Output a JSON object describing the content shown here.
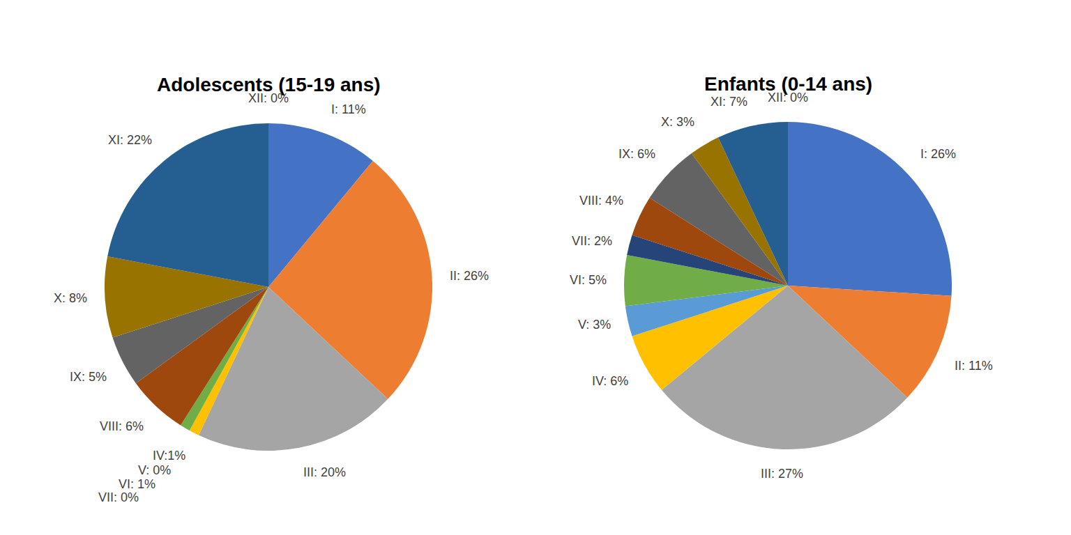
{
  "chart_data": [
    {
      "type": "pie",
      "title": "Adolescents (15-19 ans)",
      "categories": [
        "I",
        "II",
        "III",
        "IV",
        "V",
        "VI",
        "VII",
        "VIII",
        "IX",
        "X",
        "XI",
        "XII"
      ],
      "values": [
        11,
        26,
        20,
        1,
        0,
        1,
        0,
        6,
        5,
        8,
        22,
        0
      ],
      "value_labels": [
        "I: 11%",
        "II: 26%",
        "III: 20%",
        "IV:1%",
        "V: 0%",
        "VI: 1%",
        "VII: 0%",
        "VIII: 6%",
        "IX: 5%",
        "X: 8%",
        "XI: 22%",
        "XII: 0%"
      ],
      "colors": [
        "#4472c4",
        "#ed7d31",
        "#a5a5a5",
        "#ffc000",
        "#5b9bd5",
        "#70ad47",
        "#264478",
        "#9e480e",
        "#636363",
        "#997300",
        "#255e91",
        "#43682b"
      ],
      "data_labels": true
    },
    {
      "type": "pie",
      "title": "Enfants (0-14 ans)",
      "categories": [
        "I",
        "II",
        "III",
        "IV",
        "V",
        "VI",
        "VII",
        "VIII",
        "IX",
        "X",
        "XI",
        "XII"
      ],
      "values": [
        26,
        11,
        27,
        6,
        3,
        5,
        2,
        4,
        6,
        3,
        7,
        0
      ],
      "value_labels": [
        "I: 26%",
        "II: 11%",
        "III: 27%",
        "IV: 6%",
        "V: 3%",
        "VI: 5%",
        "VII: 2%",
        "VIII: 4%",
        "IX: 6%",
        "X: 3%",
        "XI: 7%",
        "XII: 0%"
      ],
      "colors": [
        "#4472c4",
        "#ed7d31",
        "#a5a5a5",
        "#ffc000",
        "#5b9bd5",
        "#70ad47",
        "#264478",
        "#9e480e",
        "#636363",
        "#997300",
        "#255e91",
        "#43682b"
      ],
      "data_labels": true
    }
  ]
}
